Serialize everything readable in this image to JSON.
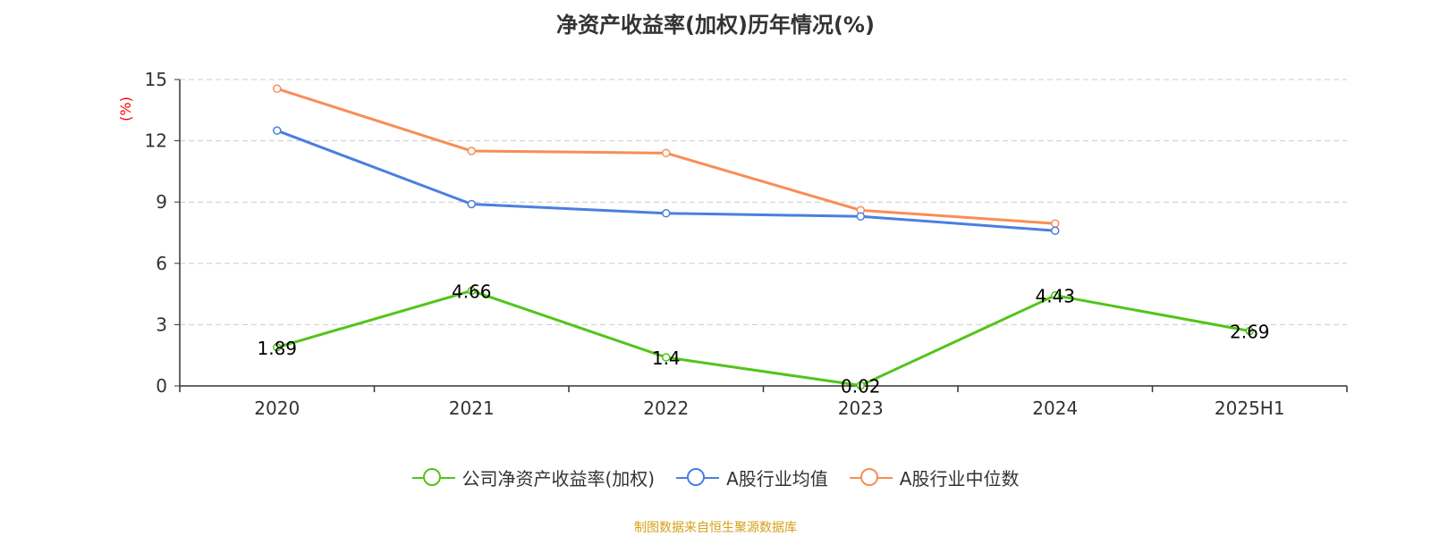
{
  "chart_data": {
    "type": "line",
    "title": "净资产收益率(加权)历年情况(%)",
    "ylabel": "(%)",
    "xlabel": "",
    "categories": [
      "2020",
      "2021",
      "2022",
      "2023",
      "2024",
      "2025H1"
    ],
    "ylim": [
      0,
      15
    ],
    "yticks": [
      0,
      3,
      6,
      9,
      12,
      15
    ],
    "grid": true,
    "legend_position": "bottom",
    "series": [
      {
        "name": "公司净资产收益率(加权)",
        "color": "#52c41a",
        "values": [
          1.89,
          4.66,
          1.4,
          0.02,
          4.43,
          2.69
        ],
        "labels": [
          "1.89",
          "4.66",
          "1.4",
          "0.02",
          "4.43",
          "2.69"
        ]
      },
      {
        "name": "A股行业均值",
        "color": "#4a7fe0",
        "values": [
          12.5,
          8.9,
          8.45,
          8.3,
          7.6,
          null
        ]
      },
      {
        "name": "A股行业中位数",
        "color": "#fa8c56",
        "values": [
          14.55,
          11.5,
          11.4,
          8.6,
          7.95,
          null
        ]
      }
    ]
  },
  "source": "制图数据来自恒生聚源数据库"
}
